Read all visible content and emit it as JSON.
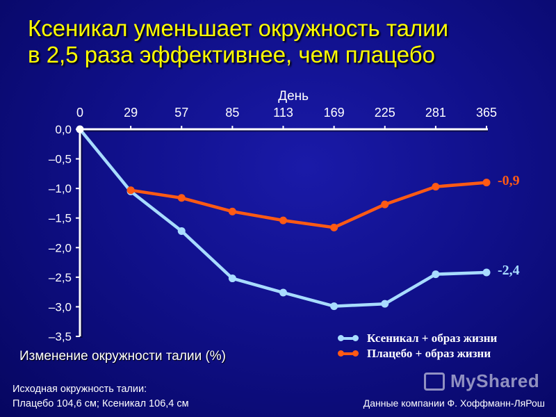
{
  "title": {
    "line1": "Ксеникал уменьшает окружность талии",
    "line2": "в 2,5 раза эффективнее, чем плацебо"
  },
  "colors": {
    "title": "#ffff00",
    "xenical": "#a8dcff",
    "placebo": "#ff5a14",
    "axis": "#ffffff"
  },
  "chart_data": {
    "type": "line",
    "xlabel": "День",
    "ylabel": "Изменение окружности талии (%)",
    "categories": [
      "0",
      "29",
      "57",
      "85",
      "113",
      "169",
      "225",
      "281",
      "365"
    ],
    "ylim": [
      -3.5,
      0
    ],
    "yticks": [
      "0,0",
      "–0,5",
      "–1,0",
      "–1,5",
      "–2,0",
      "–2,5",
      "–3,0",
      "–3,5"
    ],
    "ytick_values": [
      0,
      -0.5,
      -1.0,
      -1.5,
      -2.0,
      -2.5,
      -3.0,
      -3.5
    ],
    "x_axis_position": "top",
    "legend_position": "bottom-right",
    "grid": false,
    "series": [
      {
        "name": "Ксеникал + образ жизни",
        "color": "#a8dcff",
        "values": [
          0,
          -1.05,
          -1.72,
          -2.52,
          -2.76,
          -2.99,
          -2.95,
          -2.45,
          -2.42
        ],
        "end_label": "-2,4"
      },
      {
        "name": "Плацебо + образ жизни",
        "color": "#ff5a14",
        "values": [
          null,
          -1.03,
          -1.16,
          -1.39,
          -1.54,
          -1.66,
          -1.27,
          -0.97,
          -0.9
        ],
        "end_label": "-0,9"
      }
    ]
  },
  "footnote": {
    "line1": "Исходная окружность талии:",
    "line2": "Плацебо 104,6 см; Ксеникал 106,4 см"
  },
  "source": "Данные компании Ф. Хоффманн-ЛяРош",
  "watermark": "MyShared"
}
